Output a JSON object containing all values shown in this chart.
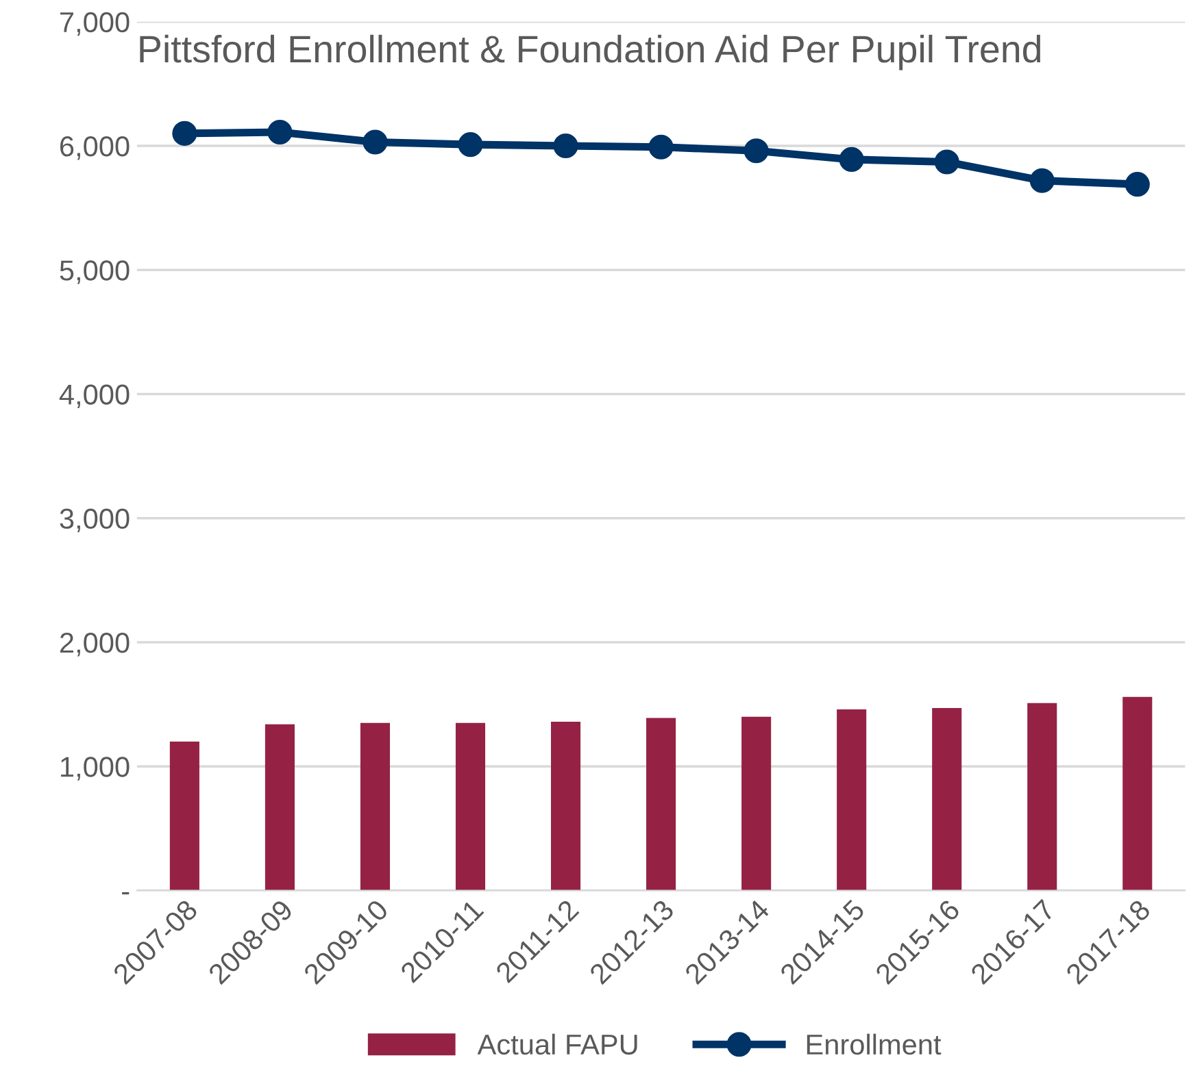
{
  "chart_data": {
    "type": "bar",
    "title": "Pittsford Enrollment & Foundation Aid Per Pupil Trend",
    "categories": [
      "2007-08",
      "2008-09",
      "2009-10",
      "2010-11",
      "2011-12",
      "2012-13",
      "2013-14",
      "2014-15",
      "2015-16",
      "2016-17",
      "2017-18"
    ],
    "series": [
      {
        "name": "Actual FAPU",
        "color": "#952245",
        "values": [
          1200,
          1340,
          1350,
          1350,
          1360,
          1390,
          1400,
          1460,
          1470,
          1510,
          1560
        ]
      },
      {
        "name": "Enrollment",
        "type": "line",
        "color": "#003366",
        "marker": "circle",
        "values": [
          6100,
          6110,
          6030,
          6010,
          6000,
          5990,
          5960,
          5890,
          5870,
          5720,
          5690
        ]
      }
    ],
    "ylim": [
      0,
      7000
    ],
    "yticks": [
      {
        "value": 0,
        "label": "-"
      },
      {
        "value": 1000,
        "label": "1,000"
      },
      {
        "value": 2000,
        "label": "2,000"
      },
      {
        "value": 3000,
        "label": "3,000"
      },
      {
        "value": 4000,
        "label": "4,000"
      },
      {
        "value": 5000,
        "label": "5,000"
      },
      {
        "value": 6000,
        "label": "6,000"
      },
      {
        "value": 7000,
        "label": "7,000"
      }
    ],
    "grid": "y",
    "legend": "bottom"
  }
}
